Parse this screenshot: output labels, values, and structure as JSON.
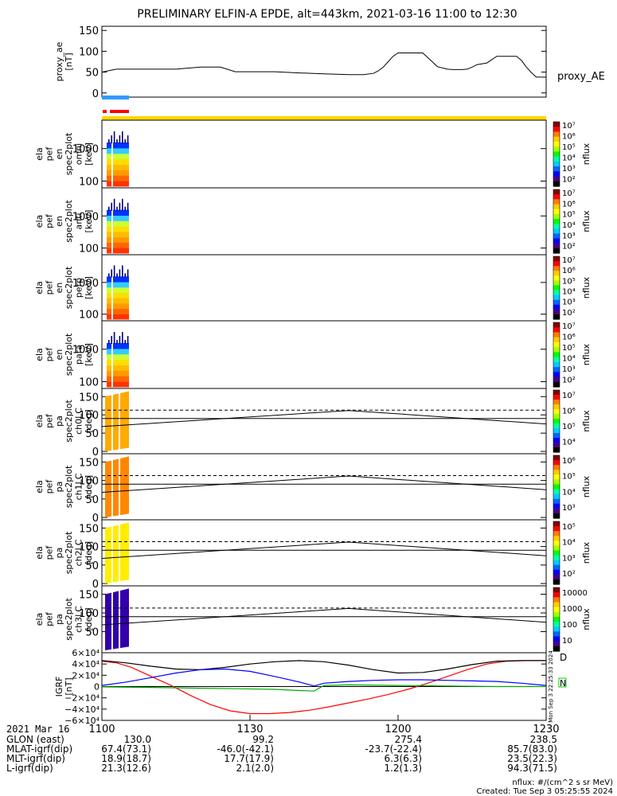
{
  "title": "PRELIMINARY ELFIN-A EPDE, alt=443km, 2021-03-16 11:00 to 12:30",
  "chart_data": [
    {
      "id": "proxy_ae",
      "type": "line",
      "ylabel": [
        "proxy_ae",
        "[nT]"
      ],
      "yticks": [
        "150",
        "100",
        "50",
        "0"
      ],
      "ylim": [
        -10,
        160
      ],
      "legend": "proxy_AE",
      "x": [
        0,
        2,
        3,
        4,
        5,
        10,
        15,
        20,
        22,
        24,
        27,
        30,
        32,
        35,
        40,
        45,
        50,
        53,
        55,
        56,
        57,
        58,
        59,
        60,
        62,
        65,
        68,
        70,
        71,
        72,
        73,
        74,
        75,
        76,
        78,
        80,
        83,
        84,
        85,
        86,
        87,
        88,
        90
      ],
      "values": [
        50,
        55,
        57,
        57,
        57,
        57,
        57,
        62,
        62,
        62,
        51,
        51,
        51,
        51,
        48,
        46,
        44,
        44,
        47,
        53,
        62,
        75,
        88,
        96,
        96,
        96,
        63,
        57,
        56,
        56,
        56,
        57,
        62,
        68,
        72,
        88,
        88,
        88,
        78,
        62,
        49,
        38,
        38
      ]
    },
    {
      "id": "en_omni",
      "type": "heatmap",
      "ylabel": [
        "ela",
        "pef",
        "en",
        "spec2plot",
        "omni",
        "[keV]"
      ],
      "yticks": [
        "1000",
        "100"
      ],
      "colorbar": {
        "label": "nflux",
        "ticks": [
          "10^7",
          "10^6",
          "10^5",
          "10^4",
          "10^3",
          "10^2"
        ]
      }
    },
    {
      "id": "en_anti",
      "type": "heatmap",
      "ylabel": [
        "ela",
        "pef",
        "en",
        "spec2plot",
        "anti",
        "[keV]"
      ],
      "yticks": [
        "1000",
        "100"
      ],
      "colorbar": {
        "label": "nflux",
        "ticks": [
          "10^7",
          "10^6",
          "10^5",
          "10^4",
          "10^3",
          "10^2"
        ]
      }
    },
    {
      "id": "en_perp",
      "type": "heatmap",
      "ylabel": [
        "ela",
        "pef",
        "en",
        "spec2plot",
        "perp",
        "[keV]"
      ],
      "yticks": [
        "1000",
        "100"
      ],
      "colorbar": {
        "label": "nflux",
        "ticks": [
          "10^7",
          "10^6",
          "10^5",
          "10^4",
          "10^3",
          "10^2"
        ]
      }
    },
    {
      "id": "en_para",
      "type": "heatmap",
      "ylabel": [
        "ela",
        "pef",
        "en",
        "spec2plot",
        "para",
        "[keV]"
      ],
      "yticks": [
        "1000",
        "100"
      ],
      "colorbar": {
        "label": "nflux",
        "ticks": [
          "10^7",
          "10^6",
          "10^5",
          "10^4",
          "10^3",
          "10^2"
        ]
      }
    },
    {
      "id": "pa_ch0",
      "type": "heatmap",
      "ylabel": [
        "ela",
        "pef",
        "pa",
        "spec2plot",
        "ch0LC",
        "[deg]"
      ],
      "yticks": [
        "150",
        "100",
        "50",
        "0"
      ],
      "colorbar": {
        "label": "nflux",
        "ticks": [
          "10^7",
          "10^6",
          "10^5",
          "10^4"
        ]
      }
    },
    {
      "id": "pa_ch1",
      "type": "heatmap",
      "ylabel": [
        "ela",
        "pef",
        "pa",
        "spec2plot",
        "ch1LC",
        "[deg]"
      ],
      "yticks": [
        "150",
        "100",
        "50",
        "0"
      ],
      "colorbar": {
        "label": "nflux",
        "ticks": [
          "10^6",
          "10^5",
          "10^4",
          "10^3"
        ]
      }
    },
    {
      "id": "pa_ch2",
      "type": "heatmap",
      "ylabel": [
        "ela",
        "pef",
        "pa",
        "spec2plot",
        "ch2LC",
        "[deg]"
      ],
      "yticks": [
        "150",
        "100",
        "50",
        "0"
      ],
      "colorbar": {
        "label": "nflux",
        "ticks": [
          "10^5",
          "10^4",
          "10^3",
          "10^2"
        ]
      }
    },
    {
      "id": "pa_ch3",
      "type": "heatmap",
      "ylabel": [
        "ela",
        "pef",
        "pa",
        "spec2plot",
        "ch3LC",
        "[deg]"
      ],
      "yticks": [
        "150",
        "100",
        "50"
      ],
      "colorbar": {
        "label": "nflux",
        "ticks": [
          "10000",
          "1000",
          "100",
          "10"
        ]
      }
    },
    {
      "id": "igrf",
      "type": "line",
      "ylabel": [
        "IGRF",
        "[nT]"
      ],
      "yticks": [
        "6×10^4",
        "4×10^4",
        "2×10^4",
        "0",
        "−2×10^4",
        "−4×10^4",
        "−6×10^4"
      ],
      "ylim": [
        -60000,
        60000
      ],
      "legend": [
        "D",
        "N"
      ],
      "series": [
        {
          "name": "D",
          "color": "#ff0000",
          "x": [
            0,
            3,
            6,
            10,
            14,
            18,
            22,
            26,
            30,
            34,
            38,
            42,
            46,
            50,
            54,
            58,
            62,
            66,
            70,
            74,
            78,
            82,
            86,
            90
          ],
          "values": [
            45000,
            42000,
            34000,
            18000,
            2000,
            -16000,
            -32000,
            -43000,
            -48000,
            -48000,
            -46000,
            -42000,
            -36000,
            -29000,
            -22000,
            -14000,
            -5000,
            6000,
            18000,
            30000,
            40000,
            45000,
            46000,
            46000
          ]
        },
        {
          "name": "",
          "color": "#000000",
          "x": [
            0,
            5,
            10,
            15,
            20,
            25,
            30,
            35,
            40,
            45,
            50,
            55,
            60,
            65,
            70,
            75,
            80,
            85,
            90
          ],
          "values": [
            46000,
            42000,
            36000,
            31000,
            30000,
            34000,
            40000,
            44000,
            46000,
            44000,
            38000,
            30000,
            24000,
            25000,
            31000,
            39000,
            45000,
            46000,
            46000
          ]
        },
        {
          "name": "",
          "color": "#0000ff",
          "x": [
            0,
            5,
            10,
            15,
            20,
            25,
            30,
            35,
            40,
            43,
            45,
            50,
            55,
            60,
            65,
            70,
            75,
            80,
            85,
            90
          ],
          "values": [
            2000,
            8000,
            16000,
            24000,
            30000,
            31000,
            27000,
            18000,
            8000,
            1000,
            6000,
            9000,
            11000,
            12000,
            12000,
            11000,
            10000,
            9000,
            6000,
            2000
          ]
        },
        {
          "name": "",
          "color": "#00aa00",
          "x": [
            0,
            10,
            20,
            28,
            35,
            40,
            43,
            45,
            50,
            60,
            70,
            80,
            90
          ],
          "values": [
            -500,
            -1500,
            -3000,
            -4000,
            -5000,
            -7000,
            -8000,
            2000,
            3000,
            2000,
            1000,
            0,
            0
          ]
        }
      ]
    }
  ],
  "xaxis": {
    "date": "2021 Mar 16",
    "ticks": [
      "1100",
      "1130",
      "1200",
      "1230"
    ],
    "rows": [
      {
        "label": "GLON (east)",
        "values": [
          "130.0",
          "99.2",
          "275.4",
          "238.5"
        ]
      },
      {
        "label": "MLAT-igrf(dip)",
        "values": [
          "67.4(73.1)",
          "-46.0(-42.1)",
          "-23.7(-22.4)",
          "85.7(83.0)"
        ]
      },
      {
        "label": "MLT-igrf(dip)",
        "values": [
          "18.9(18.7)",
          "17.7(17.9)",
          "6.3(6.3)",
          "23.5(22.3)"
        ]
      },
      {
        "label": "L-igrf(dip)",
        "values": [
          "21.3(12.6)",
          "2.1(2.0)",
          "1.2(1.3)",
          "94.3(71.5)"
        ]
      }
    ]
  },
  "vertical_stamp": "Mon Sep  3 22:25:33 2024",
  "footer": [
    "nflux: #/(cm^2 s sr MeV)",
    "Created: Tue Sep  3 05:25:55 2024"
  ],
  "bars": {
    "blue": "#3399ff",
    "red": "#ff0000",
    "yellow": "#ffd700"
  }
}
